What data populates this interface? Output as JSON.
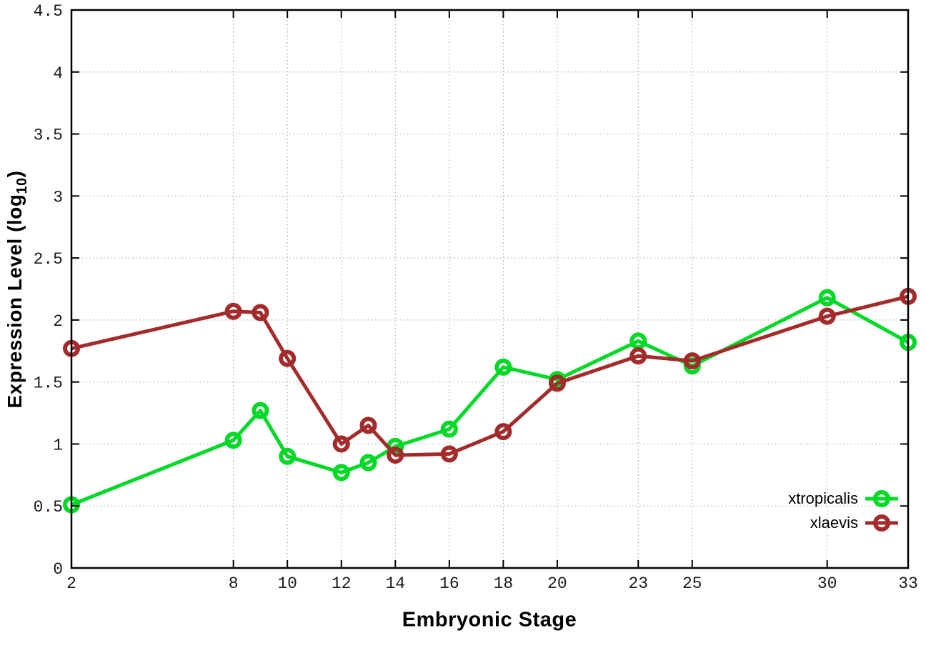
{
  "chart_data": {
    "type": "line",
    "title": "",
    "xlabel": "Embryonic Stage",
    "ylabel": "Expression Level (log10)",
    "ylabel_main": "Expression Level (log",
    "ylabel_sub": "10",
    "ylabel_suffix": ")",
    "xlim": [
      2,
      33
    ],
    "ylim": [
      0,
      4.5
    ],
    "xticks": [
      "2",
      "8",
      "10",
      "12",
      "14",
      "16",
      "18",
      "20",
      "23",
      "25",
      "30",
      "33"
    ],
    "yticks": [
      "0",
      "0.5",
      "1",
      "1.5",
      "2",
      "2.5",
      "3",
      "3.5",
      "4",
      "4.5"
    ],
    "grid": true,
    "grid_style": "dotted",
    "legend_position": "inside-bottom-right",
    "x": [
      2,
      8,
      9,
      10,
      12,
      13,
      14,
      16,
      18,
      20,
      23,
      25,
      30,
      33
    ],
    "series": [
      {
        "name": "xtropicalis",
        "color": "#00d926",
        "marker": "open-circle",
        "values": [
          0.51,
          1.03,
          1.27,
          0.9,
          0.77,
          0.85,
          0.98,
          1.12,
          1.62,
          1.52,
          1.83,
          1.63,
          2.18,
          1.82
        ]
      },
      {
        "name": "xlaevis",
        "color": "#a32b2b",
        "marker": "open-circle",
        "values": [
          1.77,
          2.07,
          2.06,
          1.69,
          1.0,
          1.15,
          0.91,
          0.92,
          1.1,
          1.49,
          1.71,
          1.67,
          2.03,
          2.19
        ]
      }
    ],
    "background_color": "#ffffff",
    "border_color": "#000000",
    "grid_color": "#9e9e9e"
  }
}
